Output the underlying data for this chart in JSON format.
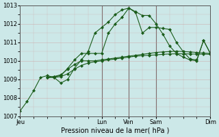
{
  "bg_color": "#cce8e8",
  "line_color": "#1a5c1a",
  "xlabel": "Pression niveau de la mer( hPa )",
  "ylim": [
    1007,
    1013
  ],
  "yticks": [
    1007,
    1008,
    1009,
    1010,
    1011,
    1012,
    1013
  ],
  "xlim_min": 0,
  "xlim_max": 168,
  "vline_positions": [
    72,
    96,
    120
  ],
  "day_tick_positions": [
    0,
    72,
    96,
    120,
    168
  ],
  "day_tick_labels": [
    "Jeu",
    "Lun",
    "Ven",
    "Sam",
    "Dim"
  ],
  "series1_x": [
    0,
    6,
    12,
    18,
    24,
    30,
    36,
    42,
    48,
    54,
    60,
    66,
    72,
    78,
    84,
    90,
    96,
    102,
    108,
    114,
    120,
    126,
    132,
    138,
    144,
    150,
    156,
    162,
    168
  ],
  "series1_y": [
    1007.3,
    1007.8,
    1008.4,
    1009.1,
    1009.2,
    1009.1,
    1008.8,
    1009.0,
    1009.6,
    1010.05,
    1010.5,
    1011.5,
    1011.8,
    1012.1,
    1012.5,
    1012.75,
    1012.85,
    1012.6,
    1011.5,
    1011.8,
    1011.8,
    1011.75,
    1011.7,
    1011.0,
    1010.5,
    1010.1,
    1010.05,
    1011.1,
    1010.4
  ],
  "series2_x": [
    24,
    30,
    36,
    42,
    48,
    54,
    60,
    66,
    72,
    78,
    84,
    90,
    96,
    102,
    108,
    114,
    120,
    126,
    132,
    138,
    144,
    150,
    156,
    162,
    168
  ],
  "series2_y": [
    1009.1,
    1009.15,
    1009.2,
    1009.6,
    1010.05,
    1010.4,
    1010.4,
    1010.4,
    1010.4,
    1011.5,
    1012.0,
    1012.35,
    1012.85,
    1012.65,
    1012.45,
    1012.45,
    1012.0,
    1011.45,
    1010.8,
    1010.4,
    1010.2,
    1010.05,
    1010.0,
    1011.1,
    1010.4
  ],
  "series3_x": [
    24,
    30,
    36,
    42,
    48,
    54,
    60,
    66,
    72,
    78,
    84,
    90,
    96,
    102,
    108,
    114,
    120,
    126,
    132,
    138,
    144,
    150,
    156,
    162,
    168
  ],
  "series3_y": [
    1009.1,
    1009.15,
    1009.25,
    1009.55,
    1009.8,
    1010.0,
    1010.0,
    1010.0,
    1010.05,
    1010.1,
    1010.15,
    1010.2,
    1010.25,
    1010.3,
    1010.35,
    1010.4,
    1010.45,
    1010.48,
    1010.5,
    1010.52,
    1010.5,
    1010.48,
    1010.45,
    1010.42,
    1010.4
  ],
  "series4_x": [
    24,
    30,
    36,
    42,
    48,
    54,
    60,
    66,
    72,
    78,
    84,
    90,
    96,
    102,
    108,
    114,
    120,
    126,
    132,
    138,
    144,
    150,
    156,
    162,
    168
  ],
  "series4_y": [
    1009.1,
    1009.1,
    1009.15,
    1009.3,
    1009.55,
    1009.75,
    1009.88,
    1009.95,
    1010.0,
    1010.05,
    1010.1,
    1010.15,
    1010.2,
    1010.25,
    1010.28,
    1010.3,
    1010.32,
    1010.35,
    1010.37,
    1010.38,
    1010.38,
    1010.37,
    1010.36,
    1010.36,
    1010.35
  ]
}
